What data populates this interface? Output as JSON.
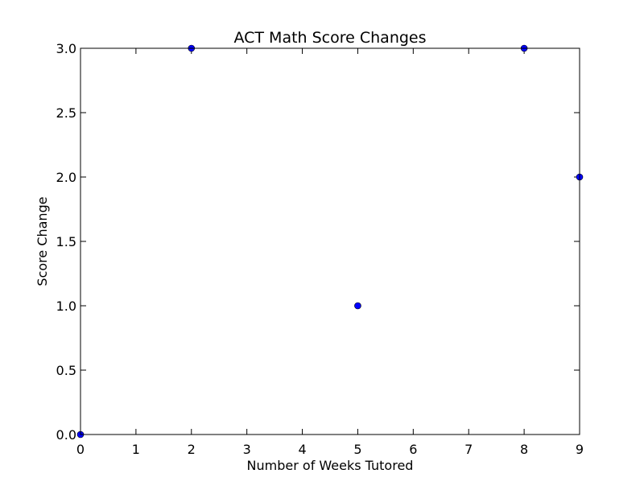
{
  "chart_data": {
    "type": "scatter",
    "title": "ACT Math Score Changes",
    "xlabel": "Number of Weeks Tutored",
    "ylabel": "Score Change",
    "xlim": [
      0,
      9
    ],
    "ylim": [
      0,
      3
    ],
    "x_ticks": [
      "0",
      "1",
      "2",
      "3",
      "4",
      "5",
      "6",
      "7",
      "8",
      "9"
    ],
    "y_ticks": [
      "0.0",
      "0.5",
      "1.0",
      "1.5",
      "2.0",
      "2.5",
      "3.0"
    ],
    "grid": false,
    "marker_color": "#0000ff",
    "points": [
      {
        "x": 0,
        "y": 0
      },
      {
        "x": 2,
        "y": 3
      },
      {
        "x": 5,
        "y": 1
      },
      {
        "x": 8,
        "y": 3
      },
      {
        "x": 9,
        "y": 2
      }
    ]
  }
}
